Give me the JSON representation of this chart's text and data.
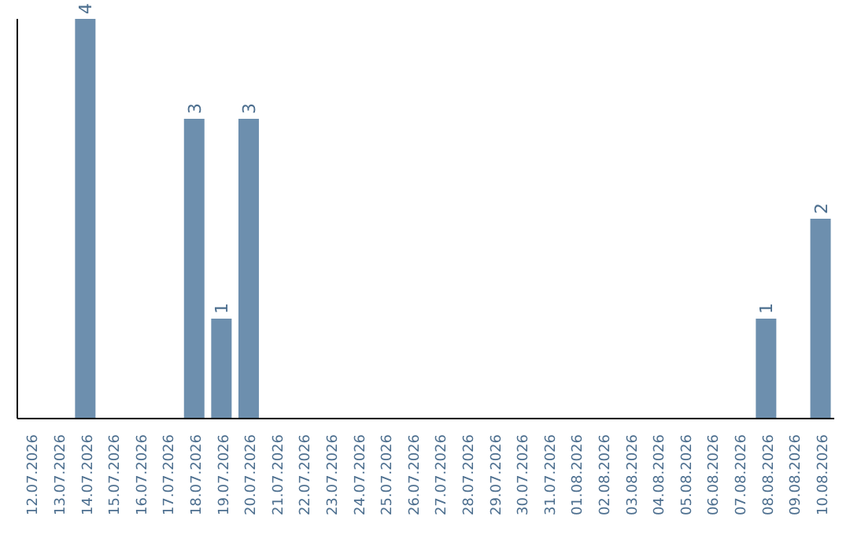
{
  "chart_data": {
    "type": "bar",
    "categories": [
      "12.07.2026",
      "13.07.2026",
      "14.07.2026",
      "15.07.2026",
      "16.07.2026",
      "17.07.2026",
      "18.07.2026",
      "19.07.2026",
      "20.07.2026",
      "21.07.2026",
      "22.07.2026",
      "23.07.2026",
      "24.07.2026",
      "25.07.2026",
      "26.07.2026",
      "27.07.2026",
      "28.07.2026",
      "29.07.2026",
      "30.07.2026",
      "31.07.2026",
      "01.08.2026",
      "02.08.2026",
      "03.08.2026",
      "04.08.2026",
      "05.08.2026",
      "06.08.2026",
      "07.08.2026",
      "08.08.2026",
      "09.08.2026",
      "10.08.2026"
    ],
    "values": [
      0,
      0,
      4,
      0,
      0,
      0,
      3,
      1,
      3,
      0,
      0,
      0,
      0,
      0,
      0,
      0,
      0,
      0,
      0,
      0,
      0,
      0,
      0,
      0,
      0,
      0,
      0,
      1,
      0,
      2
    ],
    "value_labels": [
      null,
      null,
      "4",
      null,
      null,
      null,
      "3",
      "1",
      "3",
      null,
      null,
      null,
      null,
      null,
      null,
      null,
      null,
      null,
      null,
      null,
      null,
      null,
      null,
      null,
      null,
      null,
      null,
      "1",
      null,
      "2"
    ],
    "color": "#6d8fae",
    "tick_labels": "x",
    "grid": false
  }
}
